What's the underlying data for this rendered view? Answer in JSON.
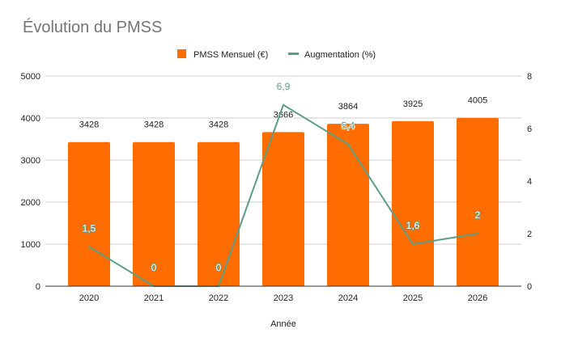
{
  "chart_data": {
    "type": "bar+line",
    "title": "Évolution du PMSS",
    "xlabel": "Année",
    "ylabel": "",
    "ylabel_right": "",
    "categories": [
      "2020",
      "2021",
      "2022",
      "2023",
      "2024",
      "2025",
      "2026"
    ],
    "series": [
      {
        "name": "PMSS Mensuel (€)",
        "type": "bar",
        "axis": "left",
        "color": "#ff6d01",
        "values": [
          3428,
          3428,
          3428,
          3666,
          3864,
          3925,
          4005
        ],
        "labels": [
          "3428",
          "3428",
          "3428",
          "3666",
          "3864",
          "3925",
          "4005"
        ]
      },
      {
        "name": "Augmentation (%)",
        "type": "line",
        "axis": "right",
        "color": "#5b9e85",
        "values": [
          1.5,
          0,
          0,
          6.9,
          5.4,
          1.6,
          2
        ],
        "labels": [
          "1,5",
          "0",
          "0",
          "6,9",
          "5,4",
          "1,6",
          "2"
        ]
      }
    ],
    "ylim": [
      0,
      5000
    ],
    "yticks": [
      "0",
      "1000",
      "2000",
      "3000",
      "4000",
      "5000"
    ],
    "ylim_right": [
      0,
      8
    ],
    "yticks_right": [
      "0",
      "2",
      "4",
      "6",
      "8"
    ],
    "grid": true,
    "legend_position": "top"
  }
}
